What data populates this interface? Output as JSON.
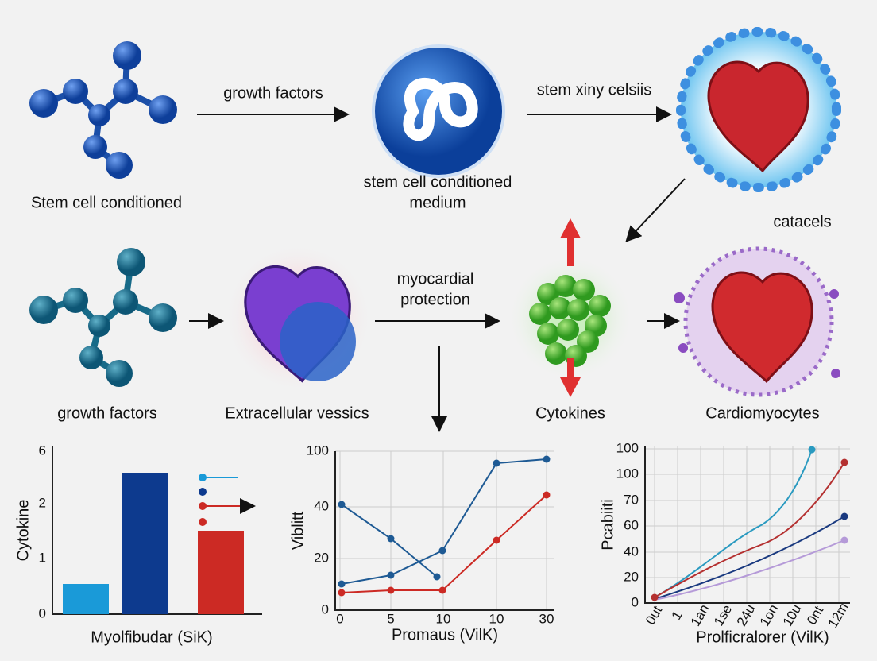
{
  "diagram": {
    "top_row": {
      "arrow_1_label": "growth factors",
      "arrow_2_label": "stem xiny celsiis",
      "molecule_label": "Stem cell conditioned",
      "medium_label": [
        "stem cell conditioned",
        "medium"
      ],
      "side_label": "catacels"
    },
    "middle_row": {
      "arrow_label": [
        "myocardial",
        "protection"
      ],
      "labels": [
        "growth factors",
        "Extracellular vessics",
        "Cytokines",
        "Cardiomyocytes"
      ]
    },
    "charts": [
      {
        "y_axis_label": "Cytokine",
        "x_axis_label": "Myolfibudar (SiK)",
        "yticks": [
          "6",
          "2",
          "1",
          "0"
        ]
      },
      {
        "y_axis_label": "Viblitt",
        "x_axis_label": "Promaus (VilK)",
        "yticks": [
          "100",
          "40",
          "20",
          "0"
        ],
        "xticks": [
          "0",
          "5",
          "10",
          "10",
          "30"
        ]
      },
      {
        "y_axis_label": "Pcabiiti",
        "x_axis_label": "Prolficralorer (VilK)",
        "yticks": [
          "100",
          "100",
          "70",
          "60",
          "40",
          "20",
          "0"
        ],
        "xticks": [
          "0ut",
          "1",
          "1an",
          "1se",
          "24u",
          "1on",
          "10u",
          "0nt",
          "12m"
        ]
      }
    ]
  }
}
